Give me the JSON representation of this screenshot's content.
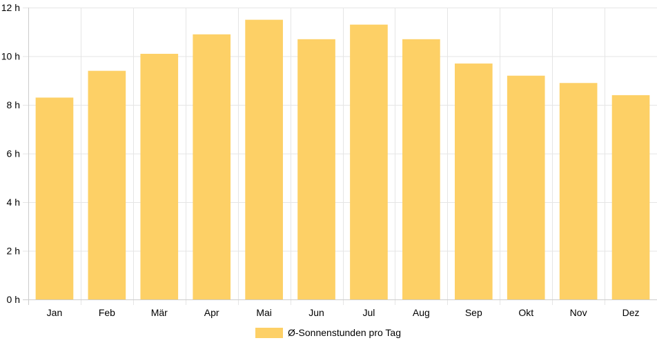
{
  "chart_data": {
    "type": "bar",
    "categories": [
      "Jan",
      "Feb",
      "Mär",
      "Apr",
      "Mai",
      "Jun",
      "Jul",
      "Aug",
      "Sep",
      "Okt",
      "Nov",
      "Dez"
    ],
    "series": [
      {
        "name": "Ø-Sonnenstunden pro Tag",
        "values": [
          8.3,
          9.4,
          10.1,
          10.9,
          11.5,
          10.7,
          11.3,
          10.7,
          9.7,
          9.2,
          8.9,
          8.4
        ]
      }
    ],
    "ylim": [
      0,
      12
    ],
    "yticks": [
      0,
      2,
      4,
      6,
      8,
      10,
      12
    ],
    "ytick_unit": "h",
    "grid": true,
    "legend_position": "bottom",
    "colors": {
      "bar": "#fdd066",
      "grid": "#e5e5e5",
      "axis": "#cccccc"
    }
  }
}
